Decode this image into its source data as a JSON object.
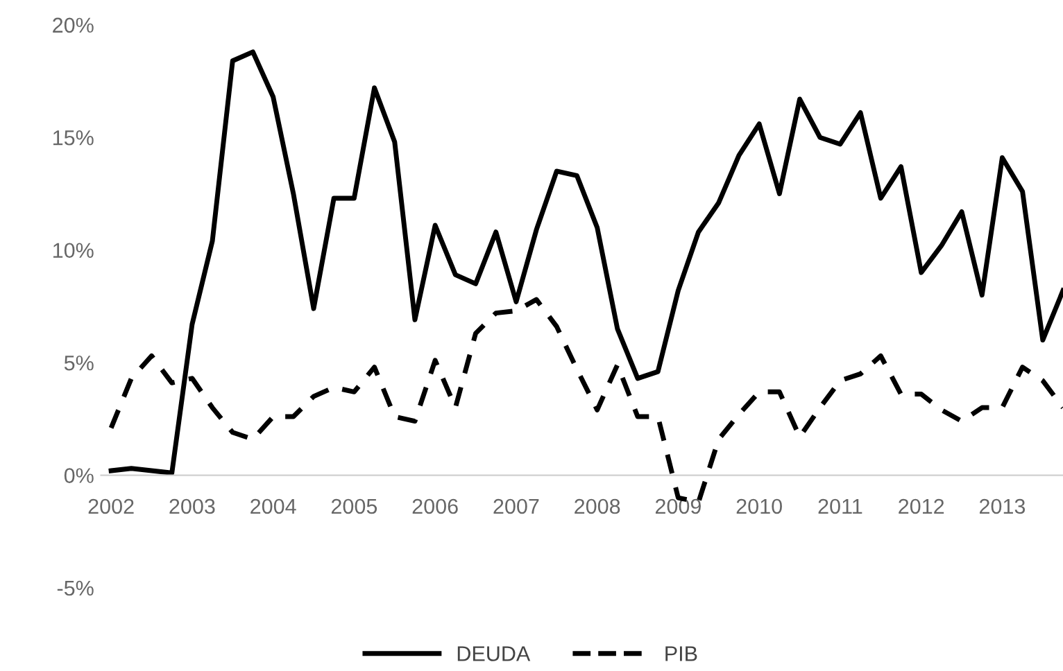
{
  "chart_data": {
    "type": "line",
    "categories": [
      "2002",
      null,
      null,
      null,
      "2003",
      null,
      null,
      null,
      "2004",
      null,
      null,
      null,
      "2005",
      null,
      null,
      null,
      "2006",
      null,
      null,
      null,
      "2007",
      null,
      null,
      null,
      "2008",
      null,
      null,
      null,
      "2009",
      null,
      null,
      null,
      "2010",
      null,
      null,
      null,
      "2011",
      null,
      null,
      null,
      "2012",
      null,
      null,
      null,
      "2013",
      null,
      null,
      null
    ],
    "series": [
      {
        "name": "DEUDA",
        "color": "#000000",
        "line_style": "solid",
        "values": [
          0.2,
          0.3,
          0.2,
          0.1,
          6.7,
          10.4,
          18.4,
          18.8,
          16.8,
          12.5,
          7.4,
          12.3,
          12.3,
          17.2,
          14.8,
          6.9,
          11.1,
          8.9,
          8.5,
          10.8,
          7.7,
          10.9,
          13.5,
          13.3,
          11.0,
          6.5,
          4.3,
          4.6,
          8.2,
          10.8,
          12.1,
          14.2,
          15.6,
          12.5,
          16.7,
          15.0,
          14.7,
          16.1,
          12.3,
          13.7,
          9.0,
          10.2,
          11.7,
          8.0,
          14.1,
          12.6,
          6.0,
          8.2
        ]
      },
      {
        "name": "PIB",
        "color": "#000000",
        "line_style": "dashed",
        "values": [
          2.1,
          4.3,
          5.3,
          4.1,
          4.3,
          3.0,
          1.9,
          1.6,
          2.6,
          2.6,
          3.5,
          3.9,
          3.7,
          4.8,
          2.6,
          2.4,
          5.1,
          3.0,
          6.3,
          7.2,
          7.3,
          7.8,
          6.6,
          4.7,
          2.9,
          4.9,
          2.6,
          2.6,
          -1.0,
          -1.2,
          1.6,
          2.7,
          3.7,
          3.7,
          1.7,
          3.0,
          4.2,
          4.5,
          5.3,
          3.6,
          3.6,
          2.9,
          2.4,
          3.0,
          3.0,
          4.8,
          4.2,
          3.0
        ]
      }
    ],
    "ylim": [
      -5,
      20
    ],
    "yticks": [
      {
        "value": -5,
        "label": "-5%"
      },
      {
        "value": 0,
        "label": "0%"
      },
      {
        "value": 5,
        "label": "5%"
      },
      {
        "value": 10,
        "label": "10%"
      },
      {
        "value": 15,
        "label": "15%"
      },
      {
        "value": 20,
        "label": "20%"
      }
    ],
    "grid": false,
    "legend": "bottom",
    "marker": "none"
  }
}
